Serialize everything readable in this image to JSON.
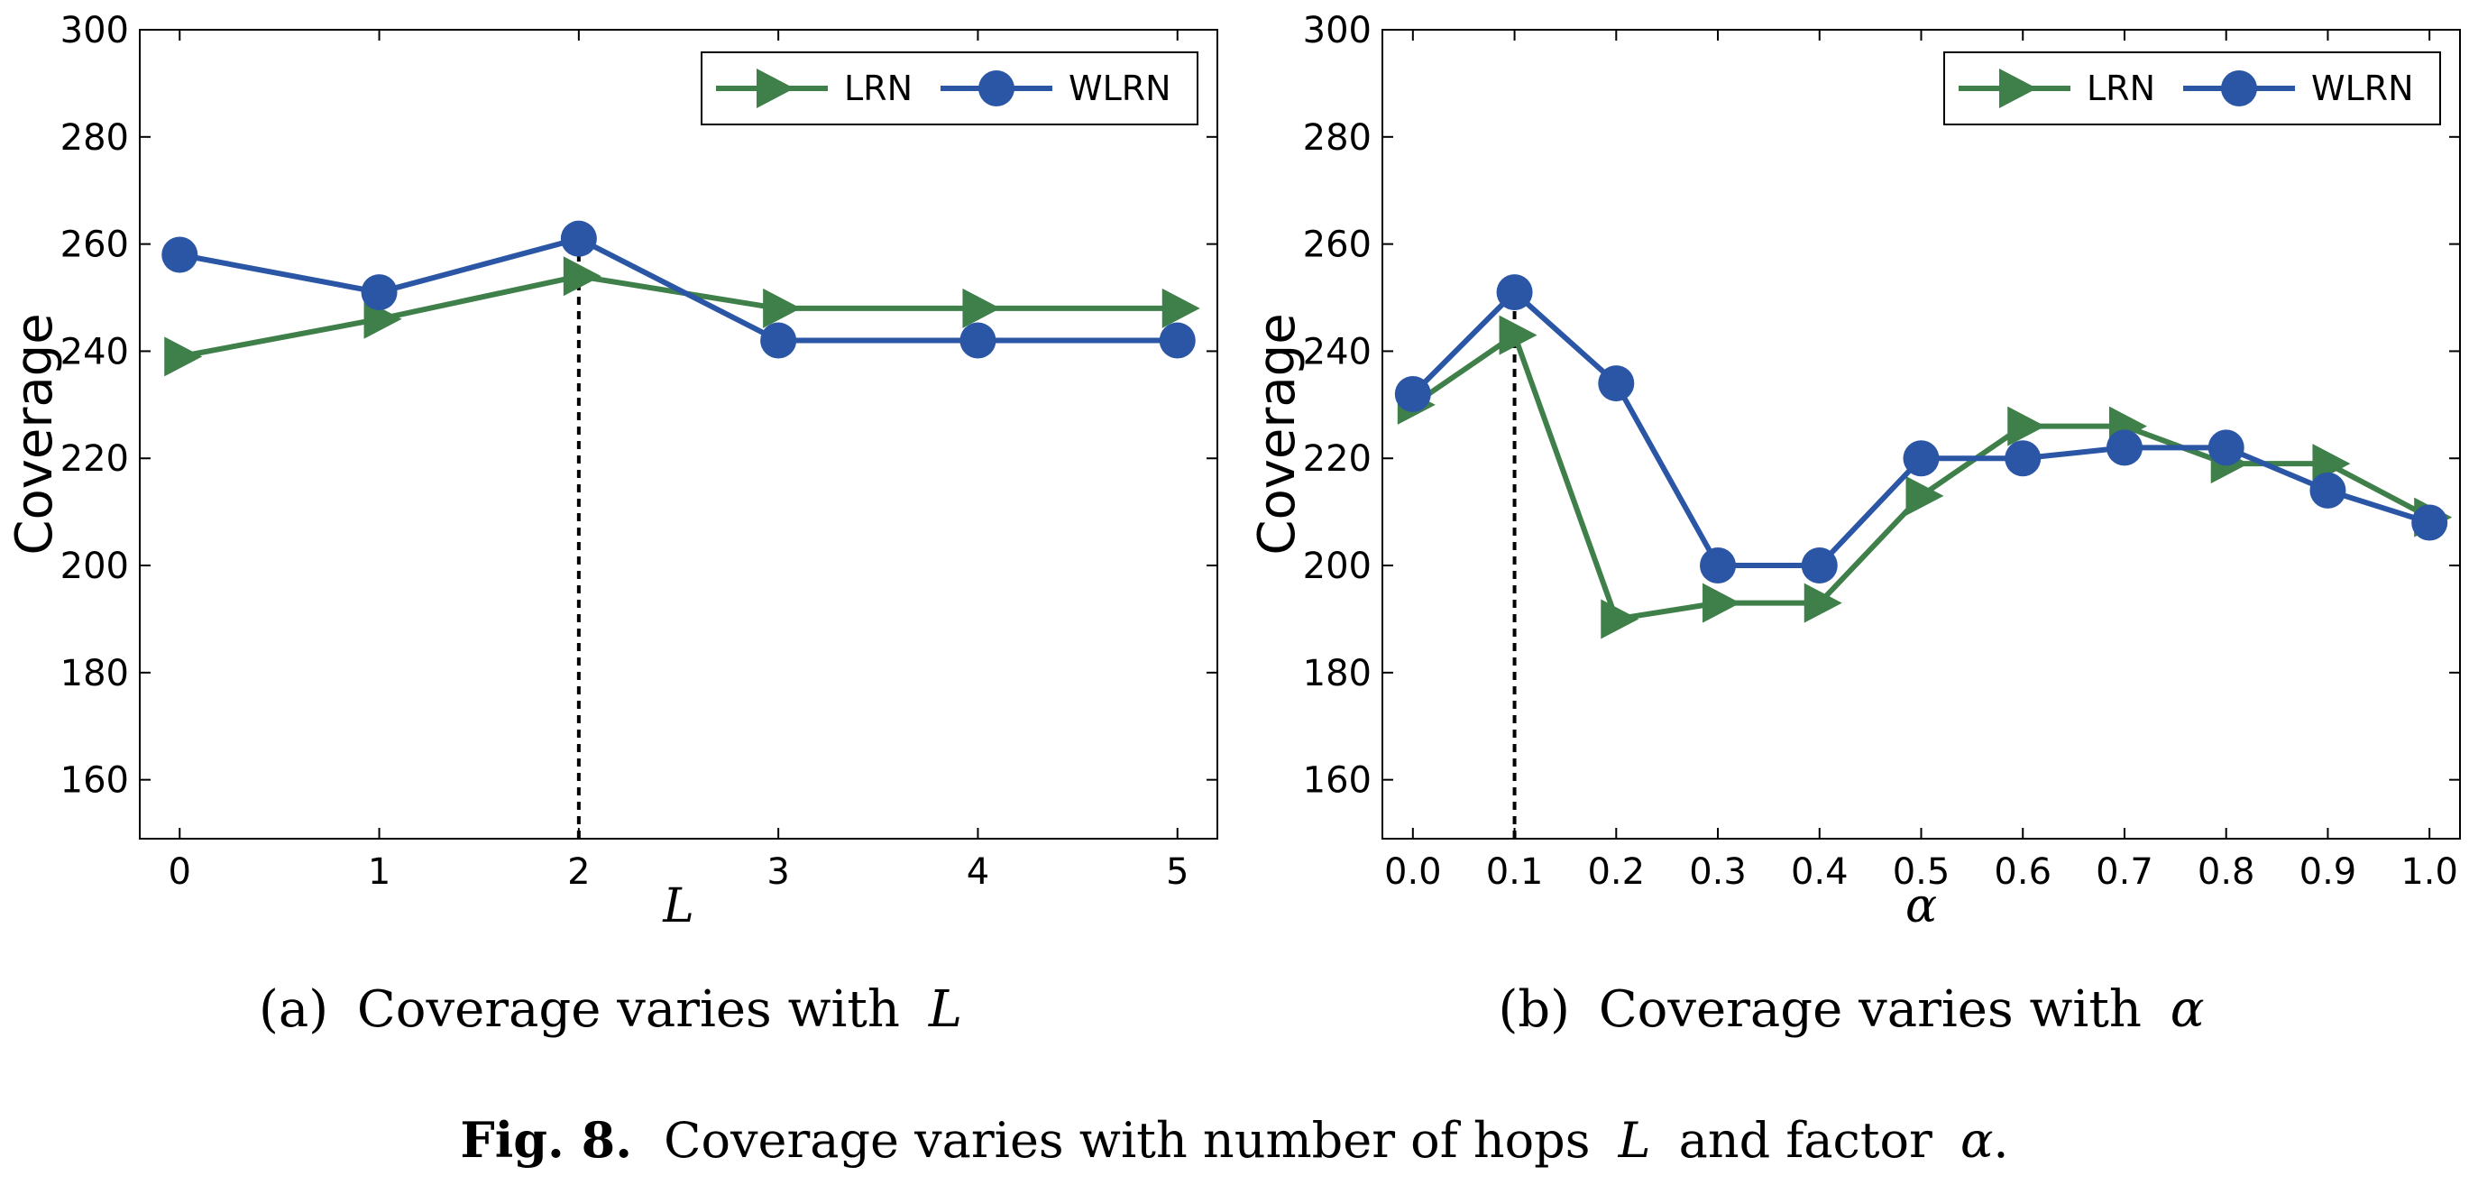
{
  "chart_data": [
    {
      "type": "line",
      "ylabel": "Coverage",
      "xlabel": "L",
      "x": [
        0,
        1,
        2,
        3,
        4,
        5
      ],
      "x_tick_labels": [
        "0",
        "1",
        "2",
        "3",
        "4",
        "5"
      ],
      "xlim": [
        -0.2,
        5.2
      ],
      "ylim": [
        149,
        300
      ],
      "y_ticks": [
        160,
        180,
        200,
        220,
        240,
        260,
        280,
        300
      ],
      "y_tick_labels": [
        "160",
        "180",
        "200",
        "220",
        "240",
        "260",
        "280",
        "300"
      ],
      "series": [
        {
          "name": "LRN",
          "color": "#3f7f4a",
          "marker": "triangle-right",
          "values": [
            239,
            246,
            254,
            248,
            248,
            248
          ]
        },
        {
          "name": "WLRN",
          "color": "#2a56a5",
          "marker": "circle",
          "values": [
            258,
            251,
            261,
            242,
            242,
            242
          ]
        }
      ],
      "reference_line": {
        "x": 2,
        "y_top": 261
      },
      "legend_position": "top-right",
      "grid": false,
      "caption": {
        "prefix": "(a)",
        "text": "Coverage varies with",
        "symbol": "L"
      }
    },
    {
      "type": "line",
      "ylabel": "Coverage",
      "xlabel": "α",
      "x": [
        0.0,
        0.1,
        0.2,
        0.3,
        0.4,
        0.5,
        0.6,
        0.7,
        0.8,
        0.9,
        1.0
      ],
      "x_tick_labels": [
        "0.0",
        "0.1",
        "0.2",
        "0.3",
        "0.4",
        "0.5",
        "0.6",
        "0.7",
        "0.8",
        "0.9",
        "1.0"
      ],
      "xlim": [
        -0.03,
        1.03
      ],
      "ylim": [
        149,
        300
      ],
      "y_ticks": [
        160,
        180,
        200,
        220,
        240,
        260,
        280,
        300
      ],
      "y_tick_labels": [
        "160",
        "180",
        "200",
        "220",
        "240",
        "260",
        "280",
        "300"
      ],
      "series": [
        {
          "name": "LRN",
          "color": "#3f7f4a",
          "marker": "triangle-right",
          "values": [
            230,
            243,
            190,
            193,
            193,
            213,
            226,
            226,
            219,
            219,
            209
          ]
        },
        {
          "name": "WLRN",
          "color": "#2a56a5",
          "marker": "circle",
          "values": [
            232,
            251,
            234,
            200,
            200,
            220,
            220,
            222,
            222,
            214,
            208
          ]
        }
      ],
      "reference_line": {
        "x": 0.1,
        "y_top": 251
      },
      "legend_position": "top-right",
      "grid": false,
      "caption": {
        "prefix": "(b)",
        "text": "Coverage varies with",
        "symbol": "α"
      }
    }
  ],
  "figure_caption": {
    "label": "Fig. 8.",
    "text_before": "Coverage varies with number of hops",
    "symbol1": "L",
    "text_middle": "and factor",
    "symbol2": "α",
    "text_end": "."
  }
}
